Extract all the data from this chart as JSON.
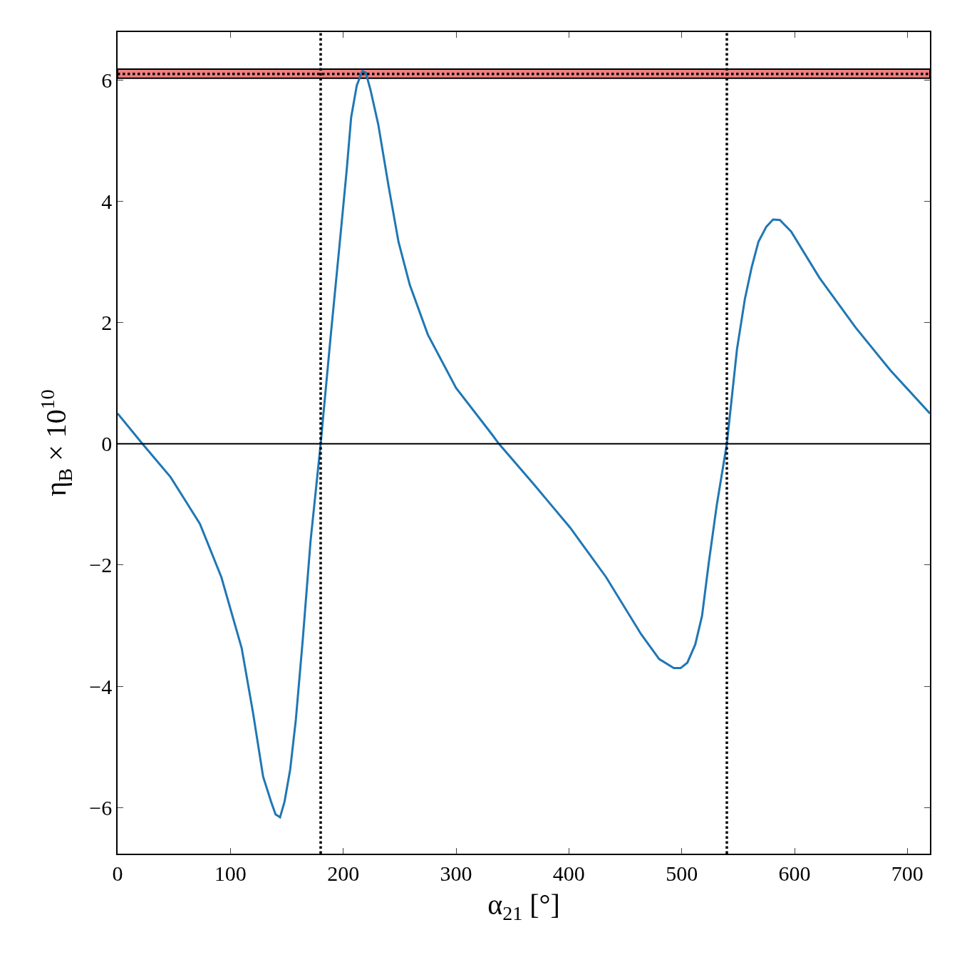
{
  "chart_data": {
    "type": "line",
    "xlabel": "α$_{21}$ [°]",
    "ylabel": "η$_{B}$ × 10$^{10}$",
    "x": [
      0,
      22,
      47,
      73,
      92,
      110,
      120,
      129,
      136,
      140,
      144,
      148,
      153,
      158,
      164,
      171,
      180,
      189,
      197,
      203,
      207,
      212,
      217,
      220,
      224,
      231,
      240,
      249,
      259,
      275,
      300,
      332,
      338,
      369,
      401,
      433,
      464,
      480,
      493,
      499,
      505,
      512,
      518,
      524,
      531,
      540,
      549,
      556,
      562,
      568,
      575,
      581,
      587,
      597,
      622,
      654,
      685,
      720
    ],
    "series": [
      {
        "color": "#1f77b4",
        "values": [
          0.5,
          0,
          -0.55,
          -1.32,
          -2.2,
          -3.37,
          -4.43,
          -5.49,
          -5.9,
          -6.11,
          -6.16,
          -5.9,
          -5.37,
          -4.55,
          -3.26,
          -1.61,
          0,
          1.8,
          3.33,
          4.5,
          5.38,
          5.91,
          6.15,
          6.12,
          5.85,
          5.27,
          4.27,
          3.33,
          2.62,
          1.8,
          0.92,
          0.15,
          0,
          -0.67,
          -1.38,
          -2.2,
          -3.14,
          -3.55,
          -3.7,
          -3.7,
          -3.61,
          -3.31,
          -2.84,
          -1.96,
          -1.02,
          0,
          1.56,
          2.39,
          2.91,
          3.33,
          3.58,
          3.7,
          3.69,
          3.5,
          2.74,
          1.92,
          1.21,
          0.5
        ]
      }
    ],
    "xlim": [
      0,
      720
    ],
    "xticks": [
      0,
      100,
      200,
      300,
      400,
      500,
      600,
      700
    ],
    "ylim": [
      -6.76,
      6.79
    ],
    "yticks": [
      {
        "value": -6,
        "label": "−6"
      },
      {
        "value": -4,
        "label": "−4"
      },
      {
        "value": -2,
        "label": "−2"
      },
      0,
      2,
      4,
      6
    ],
    "grid": false,
    "marker": "none",
    "line_style": "solid",
    "bands": [
      {
        "axis": "y",
        "from": 6.03,
        "to": 6.18,
        "color": "#f08080"
      }
    ],
    "ref_lines": [
      {
        "axis": "y",
        "value": 6.1,
        "line_style": "dotted",
        "color": "#000000"
      },
      {
        "axis": "y",
        "value": 0,
        "line_style": "solid",
        "color": "#000000"
      },
      {
        "axis": "x",
        "value": 180,
        "line_style": "dotted",
        "color": "#000000"
      },
      {
        "axis": "x",
        "value": 540,
        "line_style": "dotted",
        "color": "#000000"
      }
    ]
  }
}
